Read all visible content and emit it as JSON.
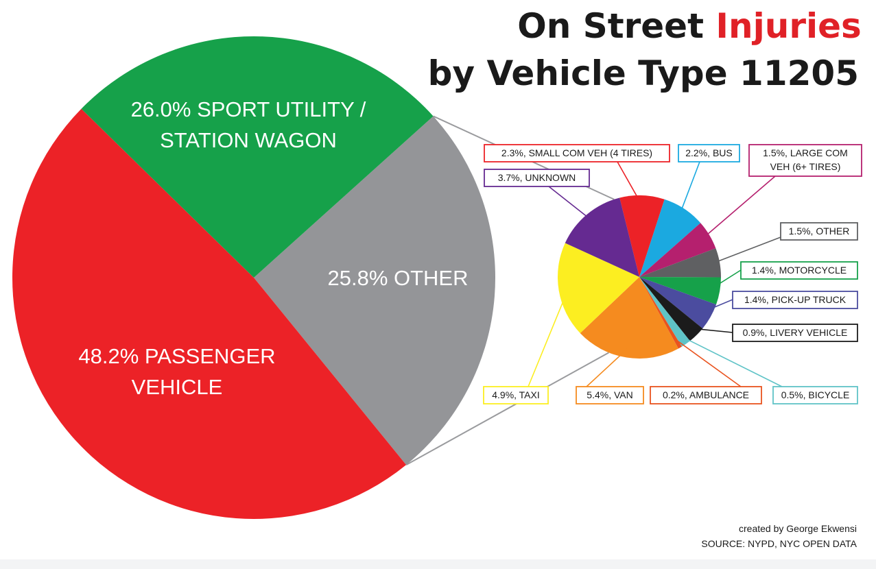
{
  "title": {
    "line1_prefix": "On Street ",
    "line1_highlight": "Injuries",
    "line2": "by Vehicle Type 11205",
    "highlight_color": "#e02127"
  },
  "credits": {
    "author": "created by George Ekwensi",
    "source": "SOURCE: NYPD, NYC OPEN DATA"
  },
  "chart_data": [
    {
      "type": "pie",
      "categories": [
        "PASSENGER VEHICLE",
        "SPORT UTILITY / STATION WAGON",
        "OTHER"
      ],
      "values": [
        48.2,
        26.0,
        25.8
      ],
      "colors": [
        "#ec2227",
        "#16a14a",
        "#949598"
      ],
      "labels": [
        [
          "48.2% PASSENGER",
          "VEHICLE"
        ],
        [
          "26.0% SPORT UTILITY /",
          "STATION WAGON"
        ],
        [
          "25.8% OTHER"
        ]
      ]
    },
    {
      "type": "pie",
      "categories": [
        "SMALL COM VEH (4 TIRES)",
        "BUS",
        "LARGE COM VEH (6+ TIRES)",
        "OTHER",
        "MOTORCYCLE",
        "PICK-UP TRUCK",
        "LIVERY VEHICLE",
        "BICYCLE",
        "AMBULANCE",
        "VAN",
        "TAXI",
        "UNKNOWN"
      ],
      "values": [
        2.3,
        2.2,
        1.5,
        1.5,
        1.4,
        1.4,
        0.9,
        0.5,
        0.2,
        5.4,
        4.9,
        3.7
      ],
      "colors": [
        "#ec2227",
        "#1ba9e0",
        "#b5206e",
        "#5f6062",
        "#16a14a",
        "#4b4c9f",
        "#1b1b1b",
        "#5fc3c7",
        "#e9531f",
        "#f58b1f",
        "#fcee21",
        "#652a91"
      ],
      "labels": [
        [
          "2.3%, SMALL COM  VEH (4 TIRES)"
        ],
        [
          "2.2%, BUS"
        ],
        [
          "1.5%, LARGE COM",
          "VEH (6+ TIRES)"
        ],
        [
          "1.5%, OTHER"
        ],
        [
          "1.4%, MOTORCYCLE"
        ],
        [
          "1.4%, PICK-UP TRUCK"
        ],
        [
          "0.9%, LIVERY VEHICLE"
        ],
        [
          "0.5%, BICYCLE"
        ],
        [
          "0.2%, AMBULANCE"
        ],
        [
          "5.4%, VAN"
        ],
        [
          "4.9%, TAXI"
        ],
        [
          "3.7%, UNKNOWN"
        ]
      ],
      "border_colors": [
        "#ec2227",
        "#1ba9e0",
        "#b5206e",
        "#5f6062",
        "#16a14a",
        "#4b4c9f",
        "#1b1b1b",
        "#5fc3c7",
        "#e9531f",
        "#f58b1f",
        "#fcee21",
        "#652a91"
      ]
    }
  ]
}
